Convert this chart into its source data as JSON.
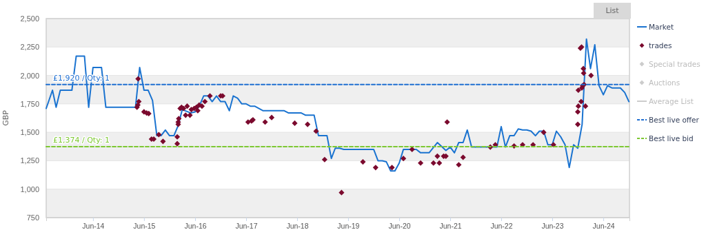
{
  "chart_data": {
    "type": "line",
    "ylabel": "GBP",
    "legend": "right",
    "grid": true,
    "annotations": [
      "List"
    ],
    "xlim": [
      "2013-07-01",
      "2024-12-05"
    ],
    "xticks": [
      {
        "value": "2014-06-01",
        "label": "Jun-14"
      },
      {
        "value": "2015-06-01",
        "label": "Jun-15"
      },
      {
        "value": "2016-06-01",
        "label": "Jun-16"
      },
      {
        "value": "2017-06-01",
        "label": "Jun-17"
      },
      {
        "value": "2018-06-01",
        "label": "Jun-18"
      },
      {
        "value": "2019-06-01",
        "label": "Jun-19"
      },
      {
        "value": "2020-06-01",
        "label": "Jun-20"
      },
      {
        "value": "2021-06-01",
        "label": "Jun-21"
      },
      {
        "value": "2022-06-01",
        "label": "Jun-22"
      },
      {
        "value": "2023-06-01",
        "label": "Jun-23"
      },
      {
        "value": "2024-06-01",
        "label": "Jun-24"
      }
    ],
    "ylim": [
      750,
      2500
    ],
    "yticks": [
      750,
      {
        "value": 1000,
        "label": "1,000"
      },
      {
        "value": 1250,
        "label": "1,250"
      },
      {
        "value": 1500,
        "label": "1,500"
      },
      {
        "value": 1750,
        "label": "1,750"
      },
      {
        "value": 2000,
        "label": "2,000"
      },
      {
        "value": 2250,
        "label": "2,250"
      },
      {
        "value": 2500,
        "label": "2,500"
      }
    ],
    "series": [
      {
        "name": "Market",
        "color": "#1a73d0",
        "marker": "none",
        "line_style": "solid",
        "x": [
          "2013-07-01",
          "2013-08-15",
          "2013-09-10",
          "2013-10-10",
          "2014-01-01",
          "2014-02-01",
          "2014-04-01",
          "2014-05-01",
          "2014-06-01",
          "2014-08-01",
          "2014-09-01",
          "2015-04-01",
          "2015-05-01",
          "2015-06-01",
          "2015-07-01",
          "2015-08-01",
          "2015-09-01",
          "2015-10-01",
          "2015-11-01",
          "2015-12-01",
          "2016-01-01",
          "2016-02-01",
          "2016-03-01",
          "2016-05-01",
          "2016-06-01",
          "2016-07-01",
          "2016-08-01",
          "2016-09-01",
          "2016-10-01",
          "2016-11-01",
          "2016-12-01",
          "2017-01-01",
          "2017-02-01",
          "2017-03-01",
          "2017-04-01",
          "2017-05-01",
          "2017-06-01",
          "2017-07-01",
          "2017-08-01",
          "2017-10-01",
          "2018-03-01",
          "2018-04-01",
          "2018-07-01",
          "2018-08-01",
          "2018-10-01",
          "2018-11-01",
          "2019-01-01",
          "2019-02-01",
          "2019-03-01",
          "2019-04-01",
          "2019-05-01",
          "2019-12-01",
          "2020-01-01",
          "2020-02-01",
          "2020-03-01",
          "2020-04-01",
          "2020-05-01",
          "2020-06-01",
          "2020-07-01",
          "2020-10-01",
          "2020-11-01",
          "2021-01-01",
          "2021-03-01",
          "2021-05-01",
          "2021-06-01",
          "2021-07-01",
          "2021-08-01",
          "2021-09-01",
          "2021-10-01",
          "2021-11-01",
          "2022-05-01",
          "2022-06-01",
          "2022-07-01",
          "2022-08-01",
          "2022-09-01",
          "2022-10-01",
          "2022-11-01",
          "2022-12-01",
          "2023-01-01",
          "2023-02-01",
          "2023-03-01",
          "2023-04-01",
          "2023-05-01",
          "2023-06-01",
          "2023-07-01",
          "2023-08-01",
          "2023-09-01",
          "2023-10-01",
          "2023-11-01",
          "2023-12-01",
          "2024-01-01",
          "2024-02-01",
          "2024-03-01",
          "2024-04-01",
          "2024-05-01",
          "2024-06-01",
          "2024-07-01",
          "2024-08-01",
          "2024-10-01",
          "2024-11-01",
          "2024-12-01"
        ],
        "values": [
          1710,
          1870,
          1720,
          1870,
          1870,
          2170,
          2170,
          1720,
          2070,
          2070,
          1720,
          1720,
          2070,
          1870,
          1870,
          1780,
          1470,
          1470,
          1520,
          1470,
          1470,
          1560,
          1700,
          1670,
          1680,
          1730,
          1820,
          1820,
          1770,
          1820,
          1770,
          1770,
          1690,
          1820,
          1800,
          1750,
          1750,
          1730,
          1730,
          1690,
          1690,
          1670,
          1670,
          1650,
          1650,
          1470,
          1470,
          1270,
          1360,
          1360,
          1350,
          1350,
          1250,
          1250,
          1240,
          1160,
          1160,
          1230,
          1350,
          1350,
          1320,
          1320,
          1410,
          1340,
          1370,
          1320,
          1410,
          1410,
          1520,
          1370,
          1370,
          1550,
          1370,
          1470,
          1470,
          1530,
          1520,
          1520,
          1510,
          1470,
          1510,
          1510,
          1390,
          1390,
          1510,
          1460,
          1390,
          1190,
          1390,
          1360,
          1570,
          2320,
          2060,
          2270,
          1910,
          1830,
          1910,
          1890,
          1890,
          1850,
          1770
        ]
      },
      {
        "name": "trades",
        "type": "scatter",
        "color": "#7b0a2e",
        "marker": "diamond",
        "x": [
          "2015-04-12",
          "2015-04-18",
          "2015-04-25",
          "2015-04-20",
          "2015-06-01",
          "2015-06-20",
          "2015-07-05",
          "2015-07-25",
          "2015-08-10",
          "2015-09-15",
          "2015-10-15",
          "2016-01-25",
          "2016-01-25",
          "2016-02-01",
          "2016-02-01",
          "2016-02-05",
          "2016-02-15",
          "2016-02-25",
          "2016-03-10",
          "2016-03-25",
          "2016-04-05",
          "2016-04-25",
          "2016-05-05",
          "2016-05-25",
          "2016-06-10",
          "2016-06-20",
          "2016-06-30",
          "2016-07-20",
          "2016-08-10",
          "2016-09-15",
          "2016-12-01",
          "2016-12-15",
          "2017-06-15",
          "2017-07-10",
          "2017-07-20",
          "2017-10-15",
          "2017-12-01",
          "2018-05-15",
          "2018-08-15",
          "2018-10-15",
          "2018-12-15",
          "2019-04-15",
          "2019-09-15",
          "2019-12-15",
          "2020-04-10",
          "2020-07-01",
          "2020-09-01",
          "2020-11-01",
          "2021-02-01",
          "2021-03-01",
          "2021-03-15",
          "2021-04-15",
          "2021-05-01",
          "2021-05-10",
          "2021-08-01",
          "2021-09-01",
          "2022-03-15",
          "2022-04-20",
          "2022-09-01",
          "2022-11-01",
          "2023-01-15",
          "2023-04-01",
          "2023-06-10",
          "2023-12-01",
          "2023-12-01",
          "2023-12-05",
          "2023-12-05",
          "2023-12-25",
          "2023-12-20",
          "2023-12-28",
          "2024-01-10",
          "2024-01-12",
          "2023-12-30",
          "2024-01-05",
          "2024-01-15",
          "2024-01-25",
          "2024-03-05"
        ],
        "values": [
          1720,
          1740,
          1770,
          1970,
          1680,
          1670,
          1665,
          1440,
          1440,
          1480,
          1420,
          1460,
          1400,
          1570,
          1590,
          1620,
          1710,
          1720,
          1710,
          1650,
          1730,
          1650,
          1700,
          1710,
          1720,
          1690,
          1740,
          1730,
          1770,
          1820,
          1820,
          1820,
          1590,
          1600,
          1610,
          1590,
          1630,
          1580,
          1570,
          1510,
          1260,
          970,
          1240,
          1190,
          1190,
          1270,
          1350,
          1230,
          1230,
          1290,
          1230,
          1290,
          1290,
          1590,
          1215,
          1280,
          1370,
          1390,
          1380,
          1390,
          1390,
          1500,
          1390,
          1570,
          1680,
          1730,
          1870,
          1770,
          2240,
          2250,
          2060,
          2020,
          1890,
          1910,
          1920,
          1730,
          2000
        ]
      },
      {
        "name": "Special trades",
        "type": "scatter",
        "color": "#cccccc",
        "marker": "diamond"
      },
      {
        "name": "Auctions",
        "type": "scatter",
        "color": "#cccccc",
        "marker": "diamond"
      },
      {
        "name": "Average List",
        "type": "line",
        "color": "#cccccc",
        "marker": "none",
        "line_style": "solid"
      },
      {
        "name": "Best live offer",
        "type": "line",
        "color": "#1f6fd1",
        "marker": "none",
        "line_style": "dashed",
        "x": [
          "2013-07-01",
          "2024-12-05"
        ],
        "values": [
          1920,
          1920
        ],
        "value_labels": [
          "£1,920 / Qty: 1",
          null
        ]
      },
      {
        "name": "Best live bid",
        "type": "line",
        "color": "#7dc832",
        "marker": "none",
        "line_style": "dashed",
        "x": [
          "2013-07-01",
          "2024-12-05"
        ],
        "values": [
          1374,
          1374
        ],
        "value_labels": [
          "£1,374 / Qty: 1",
          null
        ]
      }
    ]
  }
}
